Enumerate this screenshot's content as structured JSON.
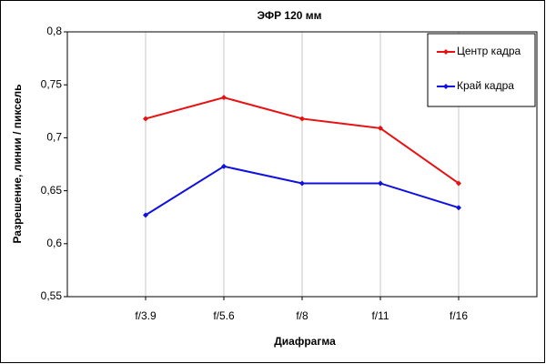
{
  "chart_data": {
    "type": "line",
    "title": "ЭФР 120 мм",
    "x_label": "Диафрагма",
    "y_label": "Разрешение, линии / пиксель",
    "categories": [
      "f/3.9",
      "f/5.6",
      "f/8",
      "f/11",
      "f/16"
    ],
    "series": [
      {
        "name": "Центр кадра",
        "color": "#e81010",
        "values": [
          0.718,
          0.738,
          0.718,
          0.709,
          0.657
        ]
      },
      {
        "name": "Край кадра",
        "color": "#1010e0",
        "values": [
          0.627,
          0.673,
          0.657,
          0.657,
          0.634
        ]
      }
    ],
    "ylim": [
      0.55,
      0.8
    ],
    "yticks": [
      {
        "value": 0.55,
        "label": "0,55"
      },
      {
        "value": 0.6,
        "label": "0,6"
      },
      {
        "value": 0.65,
        "label": "0,65"
      },
      {
        "value": 0.7,
        "label": "0,7"
      },
      {
        "value": 0.75,
        "label": "0,75"
      },
      {
        "value": 0.8,
        "label": "0,8"
      }
    ],
    "grid": true,
    "legend": "top-right"
  }
}
